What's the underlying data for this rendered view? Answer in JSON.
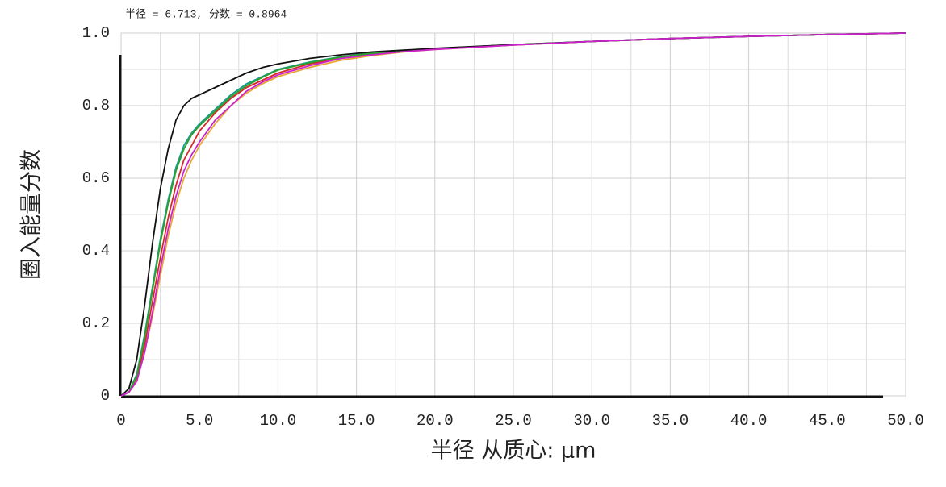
{
  "chart_data": {
    "type": "line",
    "title": "半径 = 6.713, 分数 = 0.8964",
    "x_label": "半径  从质心: µm",
    "y_label": "圈入能量分数",
    "x": [
      0,
      0.5,
      1,
      1.5,
      2,
      2.5,
      3,
      3.5,
      4,
      4.5,
      5,
      6,
      7,
      8,
      9,
      10,
      12,
      14,
      16,
      18,
      20,
      25,
      30,
      35,
      40,
      45,
      50
    ],
    "series": [
      {
        "color": "#e8a838",
        "values": [
          0,
          0.01,
          0.04,
          0.12,
          0.22,
          0.33,
          0.44,
          0.53,
          0.6,
          0.65,
          0.69,
          0.75,
          0.8,
          0.835,
          0.86,
          0.88,
          0.905,
          0.925,
          0.938,
          0.948,
          0.955,
          0.967,
          0.977,
          0.985,
          0.991,
          0.996,
          1.0
        ]
      },
      {
        "color": "#d62828",
        "values": [
          0,
          0.01,
          0.05,
          0.14,
          0.26,
          0.38,
          0.49,
          0.58,
          0.65,
          0.69,
          0.73,
          0.78,
          0.82,
          0.85,
          0.87,
          0.89,
          0.915,
          0.93,
          0.942,
          0.95,
          0.956,
          0.967,
          0.977,
          0.985,
          0.991,
          0.996,
          1.0
        ]
      },
      {
        "color": "#1a9a8a",
        "values": [
          0,
          0.01,
          0.06,
          0.17,
          0.3,
          0.43,
          0.54,
          0.63,
          0.69,
          0.725,
          0.75,
          0.79,
          0.83,
          0.86,
          0.88,
          0.9,
          0.92,
          0.935,
          0.945,
          0.952,
          0.957,
          0.968,
          0.977,
          0.985,
          0.991,
          0.996,
          1.0
        ]
      },
      {
        "color": "#2ca02c",
        "values": [
          0,
          0.01,
          0.055,
          0.16,
          0.29,
          0.42,
          0.53,
          0.62,
          0.68,
          0.72,
          0.745,
          0.785,
          0.825,
          0.855,
          0.878,
          0.898,
          0.918,
          0.934,
          0.944,
          0.951,
          0.957,
          0.968,
          0.977,
          0.985,
          0.991,
          0.996,
          1.0
        ]
      },
      {
        "color": "#111111",
        "values": [
          0,
          0.02,
          0.1,
          0.25,
          0.42,
          0.57,
          0.68,
          0.76,
          0.8,
          0.82,
          0.83,
          0.85,
          0.87,
          0.89,
          0.905,
          0.915,
          0.93,
          0.94,
          0.948,
          0.953,
          0.958,
          0.968,
          0.977,
          0.985,
          0.991,
          0.996,
          1.0
        ]
      },
      {
        "color": "#cc22cc",
        "values": [
          0,
          0.01,
          0.04,
          0.12,
          0.23,
          0.35,
          0.46,
          0.55,
          0.62,
          0.665,
          0.7,
          0.76,
          0.8,
          0.84,
          0.865,
          0.885,
          0.91,
          0.93,
          0.94,
          0.949,
          0.955,
          0.967,
          0.977,
          0.985,
          0.991,
          0.996,
          1.0
        ]
      }
    ],
    "xlim": [
      0,
      50
    ],
    "ylim": [
      0,
      1
    ],
    "xticks": [
      0,
      {
        "value": 5,
        "label": "5.0"
      },
      {
        "value": 10,
        "label": "10.0"
      },
      {
        "value": 15,
        "label": "15.0"
      },
      {
        "value": 20,
        "label": "20.0"
      },
      {
        "value": 25,
        "label": "25.0"
      },
      {
        "value": 30,
        "label": "30.0"
      },
      {
        "value": 35,
        "label": "35.0"
      },
      {
        "value": 40,
        "label": "40.0"
      },
      {
        "value": 45,
        "label": "45.0"
      },
      {
        "value": 50,
        "label": "50.0"
      }
    ],
    "yticks": [
      0,
      0.2,
      0.4,
      0.6,
      0.8,
      {
        "value": 1,
        "label": "1.0"
      }
    ],
    "minor_xticks": [
      2.5,
      7.5,
      12.5,
      17.5,
      22.5,
      27.5,
      32.5,
      37.5,
      42.5,
      47.5
    ],
    "minor_yticks": [
      0.1,
      0.3,
      0.5,
      0.7,
      0.9
    ],
    "grid": true
  }
}
